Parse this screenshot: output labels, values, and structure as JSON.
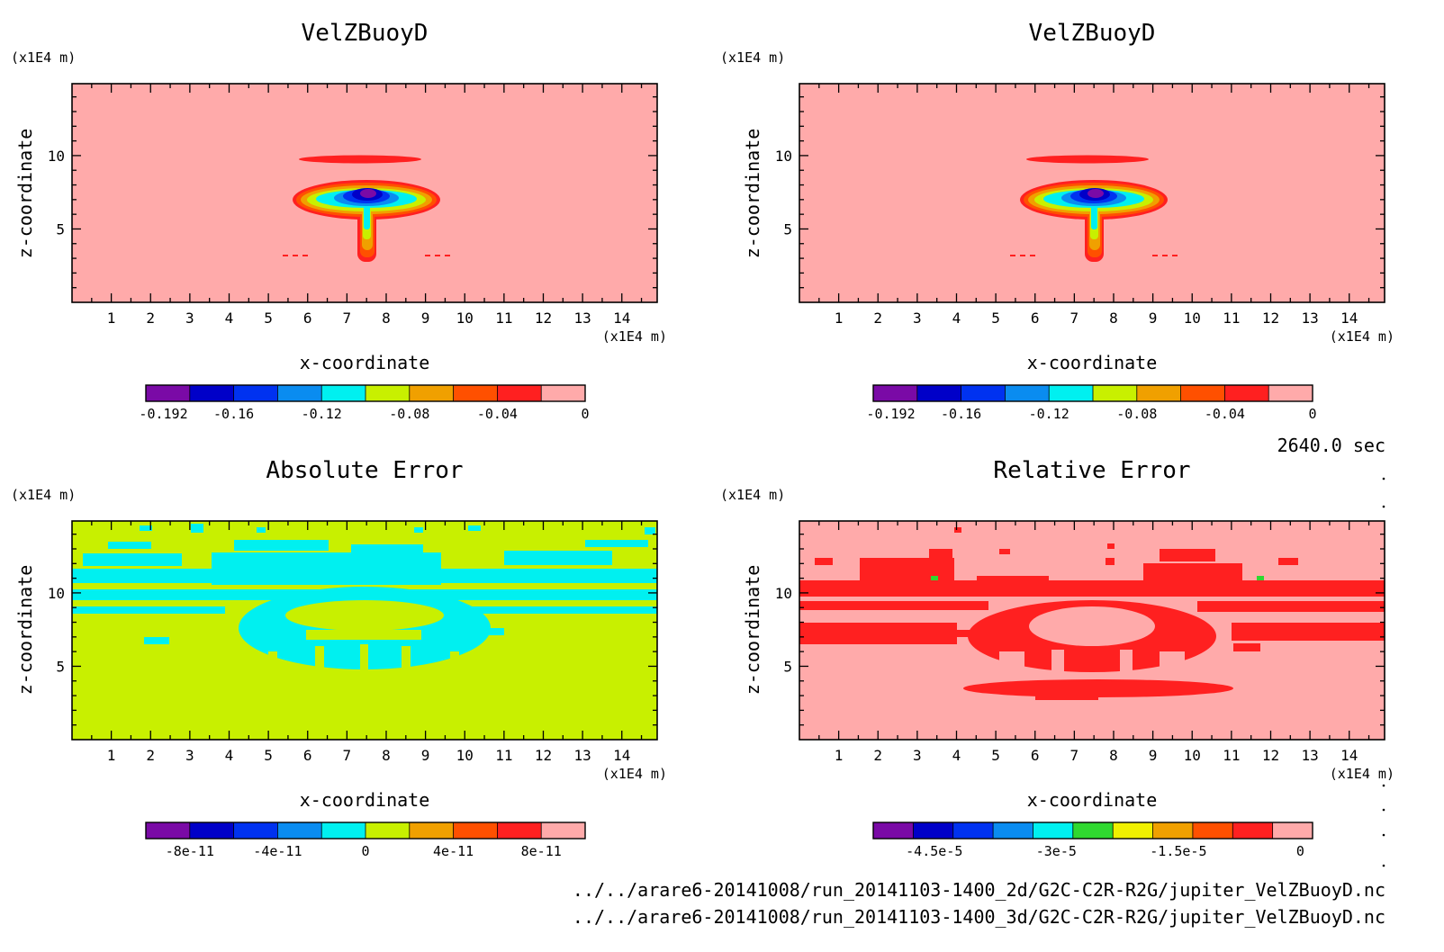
{
  "chart_data": [
    {
      "type": "heatmap",
      "title": "VelZBuoyD",
      "xlabel": "x-coordinate",
      "ylabel": "z-coordinate",
      "x_unit": "(x1E4 m)",
      "y_unit": "(x1E4 m)",
      "x_ticks": [
        1,
        2,
        3,
        4,
        5,
        6,
        7,
        8,
        9,
        10,
        11,
        12,
        13,
        14
      ],
      "y_ticks": [
        5,
        10
      ],
      "xlim": [
        0,
        14.9
      ],
      "ylim": [
        0,
        14.9
      ],
      "colorbar": {
        "colors": [
          "#7a0aa6",
          "#0000c8",
          "#0032f0",
          "#0a8cf0",
          "#00f0f0",
          "#c8f000",
          "#f0a000",
          "#ff5000",
          "#ff2020",
          "#ffaaaa"
        ],
        "min": -0.2,
        "max": 0,
        "labels": [
          {
            "value": -0.192,
            "text": "-0.192"
          },
          {
            "value": -0.16,
            "text": "-0.16"
          },
          {
            "value": -0.12,
            "text": "-0.12"
          },
          {
            "value": -0.08,
            "text": "-0.08"
          },
          {
            "value": -0.04,
            "text": "-0.04"
          },
          {
            "value": 0,
            "text": "0"
          }
        ]
      }
    },
    {
      "type": "heatmap",
      "title": "VelZBuoyD",
      "xlabel": "x-coordinate",
      "ylabel": "z-coordinate",
      "x_unit": "(x1E4 m)",
      "y_unit": "(x1E4 m)",
      "x_ticks": [
        1,
        2,
        3,
        4,
        5,
        6,
        7,
        8,
        9,
        10,
        11,
        12,
        13,
        14
      ],
      "y_ticks": [
        5,
        10
      ],
      "xlim": [
        0,
        14.9
      ],
      "ylim": [
        0,
        14.9
      ],
      "colorbar": {
        "colors": [
          "#7a0aa6",
          "#0000c8",
          "#0032f0",
          "#0a8cf0",
          "#00f0f0",
          "#c8f000",
          "#f0a000",
          "#ff5000",
          "#ff2020",
          "#ffaaaa"
        ],
        "min": -0.2,
        "max": 0,
        "labels": [
          {
            "value": -0.192,
            "text": "-0.192"
          },
          {
            "value": -0.16,
            "text": "-0.16"
          },
          {
            "value": -0.12,
            "text": "-0.12"
          },
          {
            "value": -0.08,
            "text": "-0.08"
          },
          {
            "value": -0.04,
            "text": "-0.04"
          },
          {
            "value": 0,
            "text": "0"
          }
        ]
      }
    },
    {
      "type": "heatmap",
      "title": "Absolute Error",
      "xlabel": "x-coordinate",
      "ylabel": "z-coordinate",
      "x_unit": "(x1E4 m)",
      "y_unit": "(x1E4 m)",
      "x_ticks": [
        1,
        2,
        3,
        4,
        5,
        6,
        7,
        8,
        9,
        10,
        11,
        12,
        13,
        14
      ],
      "y_ticks": [
        5,
        10
      ],
      "xlim": [
        0,
        14.9
      ],
      "ylim": [
        0,
        14.9
      ],
      "colorbar": {
        "colors": [
          "#7a0aa6",
          "#0000c8",
          "#0032f0",
          "#0a8cf0",
          "#00f0f0",
          "#c8f000",
          "#f0a000",
          "#ff5000",
          "#ff2020",
          "#ffaaaa"
        ],
        "min": -1e-10,
        "max": 1e-10,
        "labels": [
          {
            "value": -8e-11,
            "text": "-8e-11"
          },
          {
            "value": -4e-11,
            "text": "-4e-11"
          },
          {
            "value": 0,
            "text": "0"
          },
          {
            "value": 4e-11,
            "text": "4e-11"
          },
          {
            "value": 8e-11,
            "text": "8e-11"
          }
        ]
      }
    },
    {
      "type": "heatmap",
      "title": "Relative Error",
      "xlabel": "x-coordinate",
      "ylabel": "z-coordinate",
      "x_unit": "(x1E4 m)",
      "y_unit": "(x1E4 m)",
      "x_ticks": [
        1,
        2,
        3,
        4,
        5,
        6,
        7,
        8,
        9,
        10,
        11,
        12,
        13,
        14
      ],
      "y_ticks": [
        5,
        10
      ],
      "xlim": [
        0,
        14.9
      ],
      "ylim": [
        0,
        14.9
      ],
      "colorbar": {
        "colors": [
          "#7a0aa6",
          "#0000c8",
          "#0032f0",
          "#0a8cf0",
          "#00f0f0",
          "#30d830",
          "#f0f000",
          "#f0a000",
          "#ff5000",
          "#ff2020",
          "#ffaaaa"
        ],
        "min": -5.25e-05,
        "max": 1.5e-06,
        "labels": [
          {
            "value": -4.5e-05,
            "text": "-4.5e-5"
          },
          {
            "value": -3e-05,
            "text": "-3e-5"
          },
          {
            "value": -1.5e-05,
            "text": "-1.5e-5"
          },
          {
            "value": 0,
            "text": "0"
          }
        ]
      }
    }
  ],
  "info": {
    "time": "2640.0 sec",
    "file1": "../../arare6-20141008/run_20141103-1400_2d/G2C-C2R-R2G/jupiter_VelZBuoyD.nc",
    "file2": "../../arare6-20141008/run_20141103-1400_3d/G2C-C2R-R2G/jupiter_VelZBuoyD.nc"
  }
}
